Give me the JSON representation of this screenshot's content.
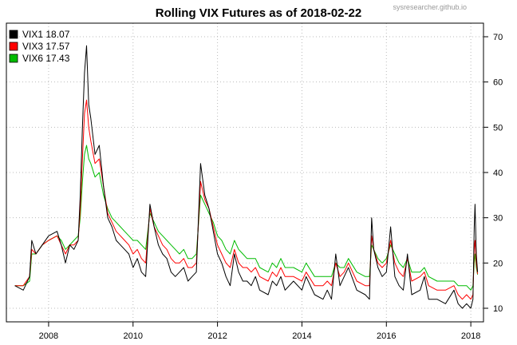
{
  "watermark": "sysresearcher.github.io",
  "chart_data": {
    "type": "line",
    "title": "Rolling VIX Futures as of 2018-02-22",
    "xlabel": "",
    "ylabel": "",
    "xlim": [
      2007.0,
      2018.3
    ],
    "ylim": [
      7,
      73
    ],
    "x_ticks": [
      2008,
      2010,
      2012,
      2014,
      2016,
      2018
    ],
    "y_ticks": [
      10,
      20,
      30,
      40,
      50,
      60,
      70
    ],
    "y_axis_side": "right",
    "grid": true,
    "legend_position": "top-left",
    "legend": [
      {
        "label": "VIX1 18.07",
        "color": "#000000"
      },
      {
        "label": "VIX3 17.57",
        "color": "#ff0000"
      },
      {
        "label": "VIX6 17.43",
        "color": "#00bb00"
      }
    ],
    "series": [
      {
        "name": "VIX1",
        "color": "#000000",
        "points": [
          [
            2007.2,
            15
          ],
          [
            2007.4,
            14
          ],
          [
            2007.55,
            17
          ],
          [
            2007.6,
            25
          ],
          [
            2007.7,
            22
          ],
          [
            2007.85,
            24
          ],
          [
            2008.0,
            26
          ],
          [
            2008.2,
            27
          ],
          [
            2008.3,
            24
          ],
          [
            2008.4,
            20
          ],
          [
            2008.5,
            24
          ],
          [
            2008.6,
            23
          ],
          [
            2008.7,
            25
          ],
          [
            2008.75,
            35
          ],
          [
            2008.8,
            50
          ],
          [
            2008.85,
            62
          ],
          [
            2008.9,
            68
          ],
          [
            2008.95,
            55
          ],
          [
            2009.0,
            52
          ],
          [
            2009.1,
            44
          ],
          [
            2009.2,
            46
          ],
          [
            2009.3,
            37
          ],
          [
            2009.4,
            30
          ],
          [
            2009.5,
            28
          ],
          [
            2009.6,
            25
          ],
          [
            2009.7,
            24
          ],
          [
            2009.8,
            23
          ],
          [
            2009.9,
            22
          ],
          [
            2010.0,
            19
          ],
          [
            2010.1,
            21
          ],
          [
            2010.2,
            18
          ],
          [
            2010.3,
            17
          ],
          [
            2010.4,
            33
          ],
          [
            2010.5,
            28
          ],
          [
            2010.6,
            24
          ],
          [
            2010.7,
            22
          ],
          [
            2010.8,
            21
          ],
          [
            2010.9,
            18
          ],
          [
            2011.0,
            17
          ],
          [
            2011.1,
            18
          ],
          [
            2011.2,
            19
          ],
          [
            2011.3,
            16
          ],
          [
            2011.4,
            17
          ],
          [
            2011.5,
            18
          ],
          [
            2011.6,
            42
          ],
          [
            2011.7,
            35
          ],
          [
            2011.8,
            32
          ],
          [
            2011.9,
            27
          ],
          [
            2012.0,
            22
          ],
          [
            2012.1,
            20
          ],
          [
            2012.2,
            17
          ],
          [
            2012.3,
            15
          ],
          [
            2012.4,
            22
          ],
          [
            2012.5,
            18
          ],
          [
            2012.6,
            16
          ],
          [
            2012.7,
            16
          ],
          [
            2012.8,
            15
          ],
          [
            2012.9,
            17
          ],
          [
            2013.0,
            14
          ],
          [
            2013.2,
            13
          ],
          [
            2013.3,
            16
          ],
          [
            2013.4,
            15
          ],
          [
            2013.5,
            17
          ],
          [
            2013.6,
            14
          ],
          [
            2013.8,
            16
          ],
          [
            2014.0,
            14
          ],
          [
            2014.1,
            17
          ],
          [
            2014.3,
            13
          ],
          [
            2014.5,
            12
          ],
          [
            2014.6,
            14
          ],
          [
            2014.7,
            12
          ],
          [
            2014.8,
            22
          ],
          [
            2014.9,
            15
          ],
          [
            2015.0,
            17
          ],
          [
            2015.1,
            19
          ],
          [
            2015.3,
            14
          ],
          [
            2015.5,
            13
          ],
          [
            2015.6,
            12
          ],
          [
            2015.65,
            30
          ],
          [
            2015.7,
            23
          ],
          [
            2015.8,
            19
          ],
          [
            2015.9,
            17
          ],
          [
            2016.0,
            18
          ],
          [
            2016.1,
            28
          ],
          [
            2016.2,
            17
          ],
          [
            2016.3,
            15
          ],
          [
            2016.4,
            14
          ],
          [
            2016.5,
            22
          ],
          [
            2016.6,
            13
          ],
          [
            2016.8,
            14
          ],
          [
            2016.9,
            17
          ],
          [
            2017.0,
            12
          ],
          [
            2017.2,
            12
          ],
          [
            2017.4,
            11
          ],
          [
            2017.6,
            14
          ],
          [
            2017.7,
            11
          ],
          [
            2017.8,
            10
          ],
          [
            2017.9,
            11
          ],
          [
            2018.0,
            10
          ],
          [
            2018.05,
            12
          ],
          [
            2018.08,
            28
          ],
          [
            2018.1,
            33
          ],
          [
            2018.13,
            22
          ],
          [
            2018.16,
            18
          ]
        ]
      },
      {
        "name": "VIX3",
        "color": "#ff0000",
        "points": [
          [
            2007.2,
            15
          ],
          [
            2007.4,
            15
          ],
          [
            2007.55,
            17
          ],
          [
            2007.6,
            23
          ],
          [
            2007.7,
            22
          ],
          [
            2007.85,
            24
          ],
          [
            2008.0,
            25
          ],
          [
            2008.2,
            26
          ],
          [
            2008.3,
            24
          ],
          [
            2008.4,
            22
          ],
          [
            2008.5,
            24
          ],
          [
            2008.6,
            24
          ],
          [
            2008.7,
            25
          ],
          [
            2008.75,
            32
          ],
          [
            2008.8,
            43
          ],
          [
            2008.85,
            53
          ],
          [
            2008.9,
            56
          ],
          [
            2008.95,
            50
          ],
          [
            2009.0,
            47
          ],
          [
            2009.1,
            42
          ],
          [
            2009.2,
            43
          ],
          [
            2009.3,
            37
          ],
          [
            2009.4,
            31
          ],
          [
            2009.5,
            29
          ],
          [
            2009.6,
            27
          ],
          [
            2009.7,
            26
          ],
          [
            2009.8,
            25
          ],
          [
            2009.9,
            24
          ],
          [
            2010.0,
            22
          ],
          [
            2010.1,
            23
          ],
          [
            2010.2,
            21
          ],
          [
            2010.3,
            20
          ],
          [
            2010.4,
            32
          ],
          [
            2010.5,
            28
          ],
          [
            2010.6,
            26
          ],
          [
            2010.7,
            24
          ],
          [
            2010.8,
            23
          ],
          [
            2010.9,
            21
          ],
          [
            2011.0,
            20
          ],
          [
            2011.1,
            20
          ],
          [
            2011.2,
            21
          ],
          [
            2011.3,
            19
          ],
          [
            2011.4,
            19
          ],
          [
            2011.5,
            20
          ],
          [
            2011.6,
            38
          ],
          [
            2011.7,
            34
          ],
          [
            2011.8,
            32
          ],
          [
            2011.9,
            28
          ],
          [
            2012.0,
            24
          ],
          [
            2012.1,
            22
          ],
          [
            2012.2,
            20
          ],
          [
            2012.3,
            19
          ],
          [
            2012.4,
            23
          ],
          [
            2012.5,
            20
          ],
          [
            2012.6,
            19
          ],
          [
            2012.7,
            19
          ],
          [
            2012.8,
            18
          ],
          [
            2012.9,
            19
          ],
          [
            2013.0,
            17
          ],
          [
            2013.2,
            16
          ],
          [
            2013.3,
            18
          ],
          [
            2013.4,
            17
          ],
          [
            2013.5,
            19
          ],
          [
            2013.6,
            17
          ],
          [
            2013.8,
            17
          ],
          [
            2014.0,
            16
          ],
          [
            2014.1,
            18
          ],
          [
            2014.3,
            15
          ],
          [
            2014.5,
            15
          ],
          [
            2014.6,
            16
          ],
          [
            2014.7,
            15
          ],
          [
            2014.8,
            20
          ],
          [
            2014.9,
            17
          ],
          [
            2015.0,
            18
          ],
          [
            2015.1,
            20
          ],
          [
            2015.3,
            16
          ],
          [
            2015.5,
            15
          ],
          [
            2015.6,
            15
          ],
          [
            2015.65,
            26
          ],
          [
            2015.7,
            23
          ],
          [
            2015.8,
            20
          ],
          [
            2015.9,
            19
          ],
          [
            2016.0,
            20
          ],
          [
            2016.1,
            25
          ],
          [
            2016.2,
            20
          ],
          [
            2016.3,
            18
          ],
          [
            2016.4,
            17
          ],
          [
            2016.5,
            21
          ],
          [
            2016.6,
            16
          ],
          [
            2016.8,
            17
          ],
          [
            2016.9,
            18
          ],
          [
            2017.0,
            15
          ],
          [
            2017.2,
            14
          ],
          [
            2017.4,
            14
          ],
          [
            2017.6,
            15
          ],
          [
            2017.7,
            13
          ],
          [
            2017.8,
            12
          ],
          [
            2017.9,
            13
          ],
          [
            2018.0,
            12
          ],
          [
            2018.05,
            13
          ],
          [
            2018.08,
            23
          ],
          [
            2018.1,
            25
          ],
          [
            2018.13,
            20
          ],
          [
            2018.16,
            17.57
          ]
        ]
      },
      {
        "name": "VIX6",
        "color": "#00bb00",
        "points": [
          [
            2007.2,
            15
          ],
          [
            2007.4,
            15
          ],
          [
            2007.55,
            16
          ],
          [
            2007.6,
            22
          ],
          [
            2007.7,
            22
          ],
          [
            2007.85,
            24
          ],
          [
            2008.0,
            25
          ],
          [
            2008.2,
            26
          ],
          [
            2008.3,
            25
          ],
          [
            2008.4,
            23
          ],
          [
            2008.5,
            24
          ],
          [
            2008.6,
            25
          ],
          [
            2008.7,
            26
          ],
          [
            2008.75,
            30
          ],
          [
            2008.8,
            38
          ],
          [
            2008.85,
            44
          ],
          [
            2008.9,
            46
          ],
          [
            2008.95,
            43
          ],
          [
            2009.0,
            42
          ],
          [
            2009.1,
            39
          ],
          [
            2009.2,
            40
          ],
          [
            2009.3,
            35
          ],
          [
            2009.4,
            32
          ],
          [
            2009.5,
            30
          ],
          [
            2009.6,
            29
          ],
          [
            2009.7,
            28
          ],
          [
            2009.8,
            27
          ],
          [
            2009.9,
            26
          ],
          [
            2010.0,
            25
          ],
          [
            2010.1,
            25
          ],
          [
            2010.2,
            24
          ],
          [
            2010.3,
            23
          ],
          [
            2010.4,
            31
          ],
          [
            2010.5,
            29
          ],
          [
            2010.6,
            27
          ],
          [
            2010.7,
            26
          ],
          [
            2010.8,
            25
          ],
          [
            2010.9,
            24
          ],
          [
            2011.0,
            23
          ],
          [
            2011.1,
            22
          ],
          [
            2011.2,
            23
          ],
          [
            2011.3,
            21
          ],
          [
            2011.4,
            21
          ],
          [
            2011.5,
            22
          ],
          [
            2011.6,
            35
          ],
          [
            2011.7,
            33
          ],
          [
            2011.8,
            31
          ],
          [
            2011.9,
            29
          ],
          [
            2012.0,
            26
          ],
          [
            2012.1,
            25
          ],
          [
            2012.2,
            23
          ],
          [
            2012.3,
            22
          ],
          [
            2012.4,
            25
          ],
          [
            2012.5,
            23
          ],
          [
            2012.6,
            22
          ],
          [
            2012.7,
            21
          ],
          [
            2012.8,
            21
          ],
          [
            2012.9,
            21
          ],
          [
            2013.0,
            19
          ],
          [
            2013.2,
            18
          ],
          [
            2013.3,
            20
          ],
          [
            2013.4,
            19
          ],
          [
            2013.5,
            21
          ],
          [
            2013.6,
            19
          ],
          [
            2013.8,
            19
          ],
          [
            2014.0,
            18
          ],
          [
            2014.1,
            20
          ],
          [
            2014.3,
            17
          ],
          [
            2014.5,
            17
          ],
          [
            2014.6,
            17
          ],
          [
            2014.7,
            17
          ],
          [
            2014.8,
            20
          ],
          [
            2014.9,
            19
          ],
          [
            2015.0,
            19
          ],
          [
            2015.1,
            21
          ],
          [
            2015.3,
            18
          ],
          [
            2015.5,
            17
          ],
          [
            2015.6,
            17
          ],
          [
            2015.65,
            24
          ],
          [
            2015.7,
            23
          ],
          [
            2015.8,
            21
          ],
          [
            2015.9,
            20
          ],
          [
            2016.0,
            21
          ],
          [
            2016.1,
            24
          ],
          [
            2016.2,
            22
          ],
          [
            2016.3,
            20
          ],
          [
            2016.4,
            19
          ],
          [
            2016.5,
            21
          ],
          [
            2016.6,
            18
          ],
          [
            2016.8,
            18
          ],
          [
            2016.9,
            19
          ],
          [
            2017.0,
            17
          ],
          [
            2017.2,
            16
          ],
          [
            2017.4,
            16
          ],
          [
            2017.6,
            16
          ],
          [
            2017.7,
            15
          ],
          [
            2017.8,
            15
          ],
          [
            2017.9,
            15
          ],
          [
            2018.0,
            14
          ],
          [
            2018.05,
            15
          ],
          [
            2018.08,
            20
          ],
          [
            2018.1,
            22
          ],
          [
            2018.13,
            19
          ],
          [
            2018.16,
            17.43
          ]
        ]
      }
    ]
  }
}
